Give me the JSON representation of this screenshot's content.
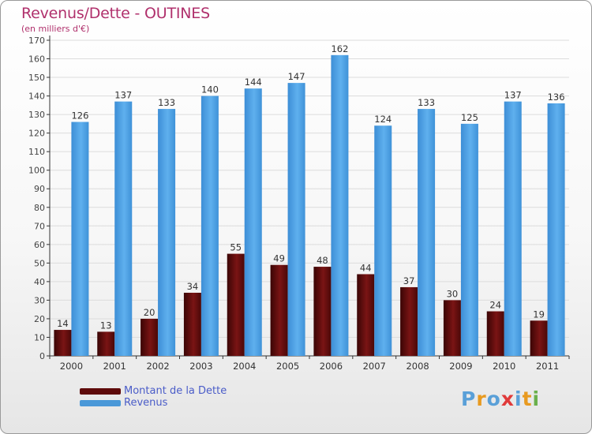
{
  "title": "Revenus/Dette - OUTINES",
  "subtitle": "(en milliers d'€)",
  "chart_data": {
    "type": "bar",
    "categories": [
      "2000",
      "2001",
      "2002",
      "2003",
      "2004",
      "2005",
      "2006",
      "2007",
      "2008",
      "2009",
      "2010",
      "2011"
    ],
    "series": [
      {
        "name": "Montant de la Dette",
        "color": "#5e0a0a",
        "values": [
          14,
          13,
          20,
          34,
          55,
          49,
          48,
          44,
          37,
          30,
          24,
          19
        ]
      },
      {
        "name": "Revenus",
        "color": "#4a98d8",
        "values": [
          126,
          137,
          133,
          140,
          144,
          147,
          162,
          124,
          133,
          125,
          137,
          136
        ]
      }
    ],
    "ylim": [
      0,
      170
    ],
    "yticks": [
      0,
      10,
      20,
      30,
      40,
      50,
      60,
      70,
      80,
      90,
      100,
      110,
      120,
      130,
      140,
      150,
      160,
      170
    ],
    "grid": true
  },
  "legend": {
    "items": [
      {
        "label": "Montant de la Dette"
      },
      {
        "label": "Revenus"
      }
    ]
  },
  "logo": {
    "text": "Proxiti",
    "letter_colors": [
      "#5aa0d8",
      "#e89a20",
      "#5aa0d8",
      "#e03a3a",
      "#5aa0d8",
      "#e89a20",
      "#6ab04c"
    ]
  }
}
